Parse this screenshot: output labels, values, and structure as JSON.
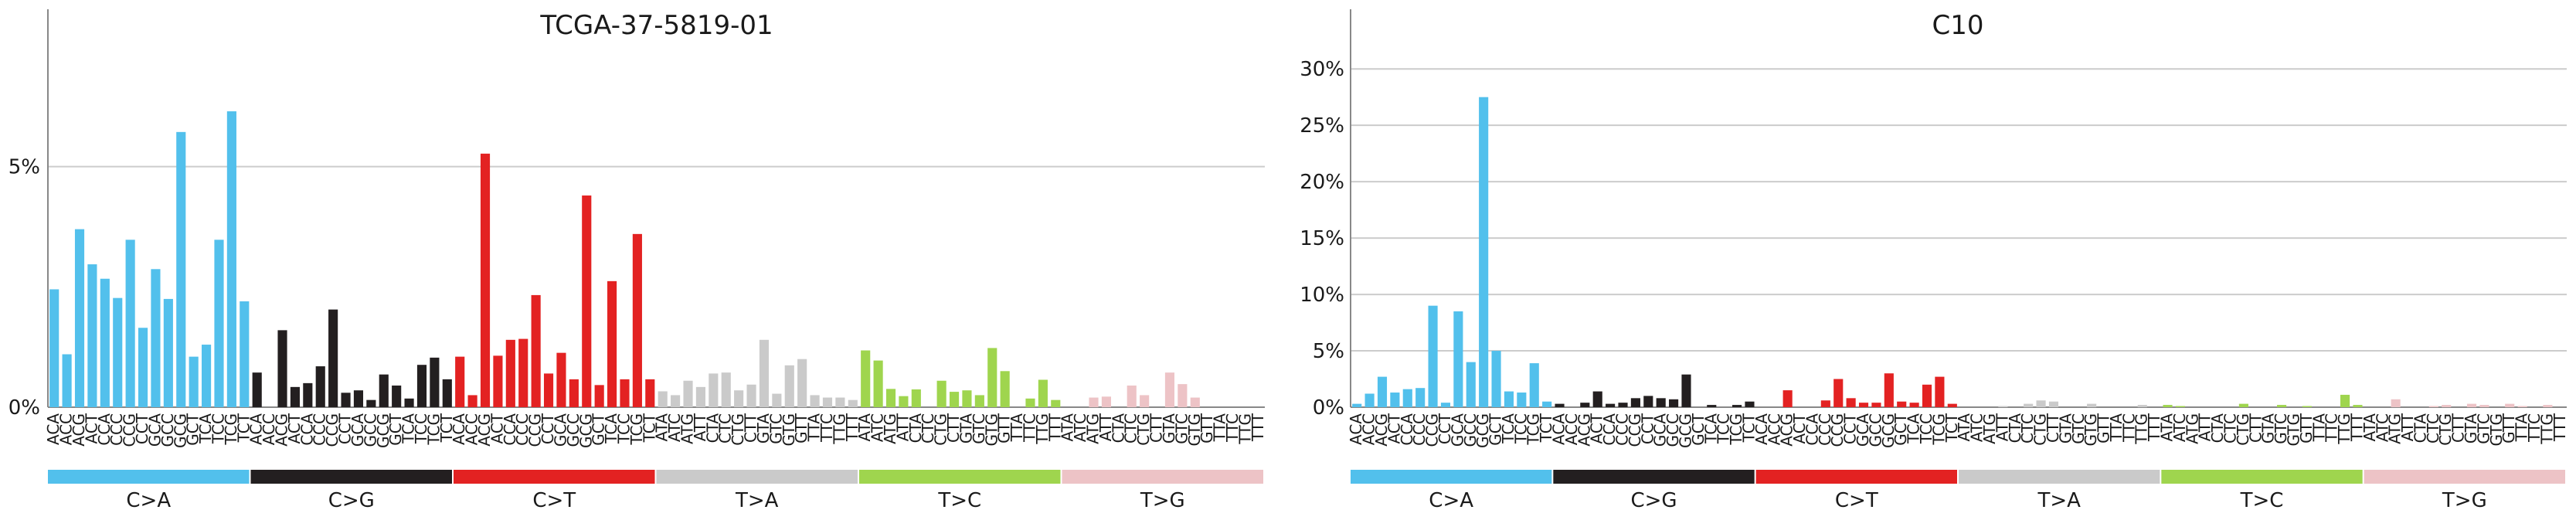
{
  "chart_data": [
    {
      "type": "bar",
      "title": "TCGA-37-5819-01",
      "ylim": [
        0,
        7.5
      ],
      "yticks": [
        0,
        5
      ],
      "ytick_labels": [
        "0%",
        "5%"
      ],
      "grid": true,
      "groups": [
        {
          "label": "C>A",
          "color": "#52c0ec"
        },
        {
          "label": "C>G",
          "color": "#231f20"
        },
        {
          "label": "C>T",
          "color": "#e32222"
        },
        {
          "label": "T>A",
          "color": "#cacaca"
        },
        {
          "label": "T>C",
          "color": "#9fd54e"
        },
        {
          "label": "T>G",
          "color": "#edc3c6"
        }
      ],
      "values": [
        2.45,
        1.1,
        3.7,
        2.97,
        2.67,
        2.27,
        3.48,
        1.65,
        2.87,
        2.25,
        5.72,
        1.05,
        1.3,
        3.48,
        6.15,
        2.2,
        0.72,
        0.0,
        1.6,
        0.42,
        0.5,
        0.85,
        2.03,
        0.3,
        0.35,
        0.15,
        0.68,
        0.45,
        0.18,
        0.88,
        1.03,
        0.58,
        1.05,
        0.25,
        5.27,
        1.07,
        1.4,
        1.42,
        2.33,
        0.7,
        1.13,
        0.58,
        4.4,
        0.46,
        2.62,
        0.58,
        3.6,
        0.58,
        0.33,
        0.25,
        0.55,
        0.42,
        0.7,
        0.72,
        0.35,
        0.47,
        1.4,
        0.28,
        0.87,
        1.0,
        0.25,
        0.2,
        0.2,
        0.15,
        1.18,
        0.97,
        0.38,
        0.23,
        0.37,
        0.0,
        0.55,
        0.32,
        0.35,
        0.25,
        1.23,
        0.75,
        0.0,
        0.18,
        0.57,
        0.15,
        0.0,
        0.0,
        0.2,
        0.22,
        0.0,
        0.45,
        0.25,
        0.0,
        0.72,
        0.48,
        0.2,
        0.0,
        0.0,
        0.0,
        0.0,
        0.0
      ]
    },
    {
      "type": "bar",
      "title": "C10",
      "ylim": [
        0,
        32
      ],
      "yticks": [
        0,
        5,
        10,
        15,
        20,
        25,
        30
      ],
      "ytick_labels": [
        "0%",
        "5%",
        "10%",
        "15%",
        "20%",
        "25%",
        "30%"
      ],
      "grid": true,
      "groups": [
        {
          "label": "C>A",
          "color": "#52c0ec"
        },
        {
          "label": "C>G",
          "color": "#231f20"
        },
        {
          "label": "C>T",
          "color": "#e32222"
        },
        {
          "label": "T>A",
          "color": "#cacaca"
        },
        {
          "label": "T>C",
          "color": "#9fd54e"
        },
        {
          "label": "T>G",
          "color": "#edc3c6"
        }
      ],
      "values": [
        0.3,
        1.2,
        2.7,
        1.3,
        1.6,
        1.7,
        9.0,
        0.4,
        8.5,
        4.0,
        27.5,
        5.0,
        1.4,
        1.3,
        3.9,
        0.5,
        0.3,
        0.0,
        0.4,
        1.4,
        0.3,
        0.4,
        0.8,
        1.0,
        0.8,
        0.7,
        2.9,
        0.0,
        0.2,
        0.0,
        0.2,
        0.5,
        0.0,
        0.0,
        1.5,
        0.0,
        0.0,
        0.6,
        2.5,
        0.8,
        0.4,
        0.4,
        3.0,
        0.5,
        0.4,
        2.0,
        2.7,
        0.3,
        0.0,
        0.0,
        0.0,
        0.1,
        0.0,
        0.3,
        0.6,
        0.5,
        0.0,
        0.0,
        0.3,
        0.0,
        0.0,
        0.0,
        0.2,
        0.0,
        0.2,
        0.1,
        0.0,
        0.0,
        0.0,
        0.0,
        0.3,
        0.0,
        0.0,
        0.2,
        0.0,
        0.1,
        0.0,
        0.0,
        1.1,
        0.2,
        0.0,
        0.0,
        0.7,
        0.0,
        0.0,
        0.1,
        0.2,
        0.0,
        0.3,
        0.2,
        0.0,
        0.3,
        0.1,
        0.0,
        0.2,
        0.0
      ]
    }
  ],
  "context_labels": [
    "ACA",
    "ACC",
    "ACG",
    "ACT",
    "CCA",
    "CCC",
    "CCG",
    "CCT",
    "GCA",
    "GCC",
    "GCG",
    "GCT",
    "TCA",
    "TCC",
    "TCG",
    "TCT",
    "ACA",
    "ACC",
    "ACG",
    "ACT",
    "CCA",
    "CCC",
    "CCG",
    "CCT",
    "GCA",
    "GCC",
    "GCG",
    "GCT",
    "TCA",
    "TCC",
    "TCG",
    "TCT",
    "ACA",
    "ACC",
    "ACG",
    "ACT",
    "CCA",
    "CCC",
    "CCG",
    "CCT",
    "GCA",
    "GCC",
    "GCG",
    "GCT",
    "TCA",
    "TCC",
    "TCG",
    "TCT",
    "ATA",
    "ATC",
    "ATG",
    "ATT",
    "CTA",
    "CTC",
    "CTG",
    "CTT",
    "GTA",
    "GTC",
    "GTG",
    "GTT",
    "TTA",
    "TTC",
    "TTG",
    "TTT",
    "ATA",
    "ATC",
    "ATG",
    "ATT",
    "CTA",
    "CTC",
    "CTG",
    "CTT",
    "GTA",
    "GTC",
    "GTG",
    "GTT",
    "TTA",
    "TTC",
    "TTG",
    "TTT",
    "ATA",
    "ATC",
    "ATG",
    "ATT",
    "CTA",
    "CTC",
    "CTG",
    "CTT",
    "GTA",
    "GTC",
    "GTG",
    "GTT",
    "TTA",
    "TTC",
    "TTG",
    "TTT"
  ],
  "colors": {
    "grid": "#cccccc",
    "axis": "#888888",
    "text": "#1a1a1a"
  }
}
